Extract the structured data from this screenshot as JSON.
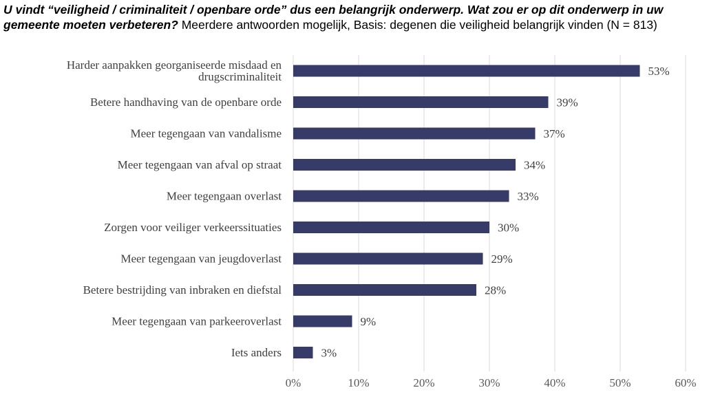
{
  "title": {
    "question": "U vindt “veiligheid / criminaliteit / openbare orde” dus een belangrijk onderwerp. Wat zou er op dit onderwerp in uw gemeente moeten verbeteren?",
    "note": " Meerdere antwoorden mogelijk, Basis: degenen die veiligheid belangrijk vinden (N = 813)"
  },
  "colors": {
    "bar": "#363b67",
    "grid": "#d9d9d9",
    "text": "#404040"
  },
  "chart_data": {
    "type": "bar",
    "orientation": "horizontal",
    "categories": [
      [
        "Harder aanpakken georganiseerde misdaad en",
        "drugscriminaliteit"
      ],
      [
        "Betere handhaving van de openbare orde"
      ],
      [
        "Meer tegengaan van vandalisme"
      ],
      [
        "Meer tegengaan van afval op straat"
      ],
      [
        "Meer tegengaan overlast"
      ],
      [
        "Zorgen voor veiliger verkeerssituaties"
      ],
      [
        "Meer tegengaan van jeugdoverlast"
      ],
      [
        "Betere bestrijding van inbraken en diefstal"
      ],
      [
        "Meer tegengaan van parkeeroverlast"
      ],
      [
        "Iets anders"
      ]
    ],
    "values": [
      53,
      39,
      37,
      34,
      33,
      30,
      29,
      28,
      9,
      3
    ],
    "value_labels": [
      "53%",
      "39%",
      "37%",
      "34%",
      "33%",
      "30%",
      "29%",
      "28%",
      "9%",
      "3%"
    ],
    "xlim": [
      0,
      60
    ],
    "xticks": [
      0,
      10,
      20,
      30,
      40,
      50,
      60
    ],
    "xtick_labels": [
      "0%",
      "10%",
      "20%",
      "30%",
      "40%",
      "50%",
      "60%"
    ],
    "grid": true,
    "legend": "none"
  }
}
